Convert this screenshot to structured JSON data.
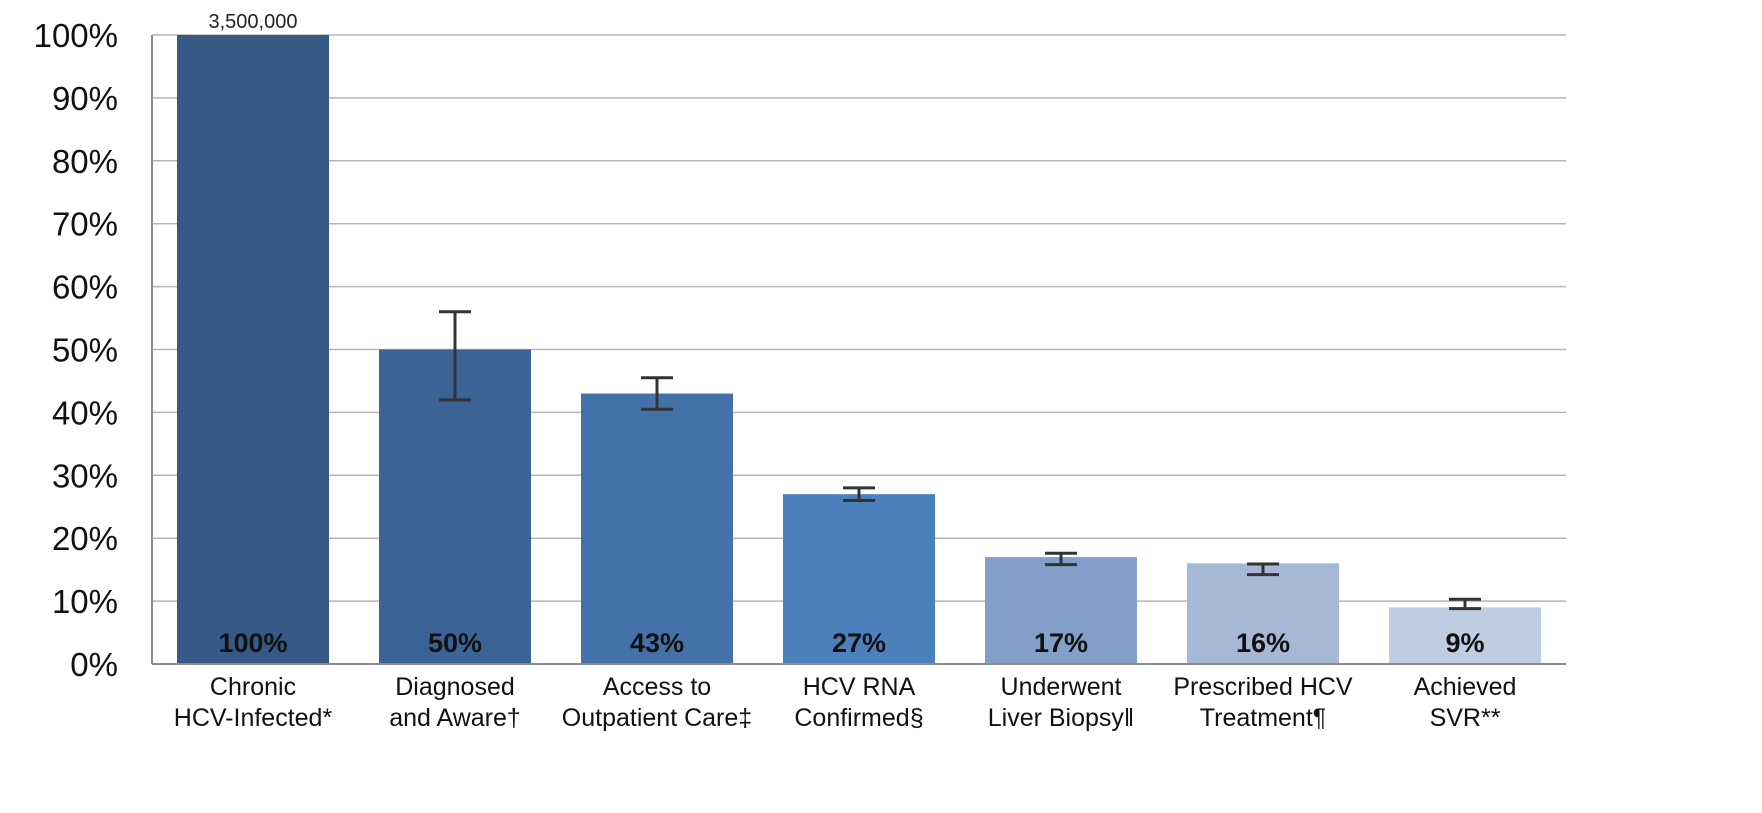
{
  "chart_data": {
    "type": "bar",
    "title": "",
    "xlabel": "",
    "ylabel": "",
    "ylim": [
      0,
      100
    ],
    "yticks": [
      "0%",
      "10%",
      "20%",
      "30%",
      "40%",
      "50%",
      "60%",
      "70%",
      "80%",
      "90%",
      "100%"
    ],
    "grid": true,
    "categories": [
      [
        "Chronic",
        "HCV-Infected*"
      ],
      [
        "Diagnosed",
        "and Aware†"
      ],
      [
        "Access to",
        "Outpatient Care‡"
      ],
      [
        "HCV RNA",
        "Confirmed§"
      ],
      [
        "Underwent",
        "Liver Biopsy‖"
      ],
      [
        "Prescribed HCV",
        "Treatment¶"
      ],
      [
        "Achieved",
        "SVR**"
      ]
    ],
    "values": [
      100,
      50,
      43,
      27,
      17,
      16,
      9
    ],
    "value_labels": [
      "100%",
      "50%",
      "43%",
      "27%",
      "17%",
      "16%",
      "9%"
    ],
    "error_bars": [
      null,
      [
        42,
        56
      ],
      [
        40.5,
        45.5
      ],
      [
        26,
        28
      ],
      [
        15.8,
        17.6
      ],
      [
        14.2,
        15.9
      ],
      [
        8.8,
        10.3
      ]
    ],
    "annotations": [
      {
        "category_index": 0,
        "text": "3,500,000"
      }
    ],
    "colors": [
      "#365a85",
      "#3b6396",
      "#4571a9",
      "#4c80bd",
      "#819fc9",
      "#a6b8d6",
      "#bfcde3"
    ]
  }
}
